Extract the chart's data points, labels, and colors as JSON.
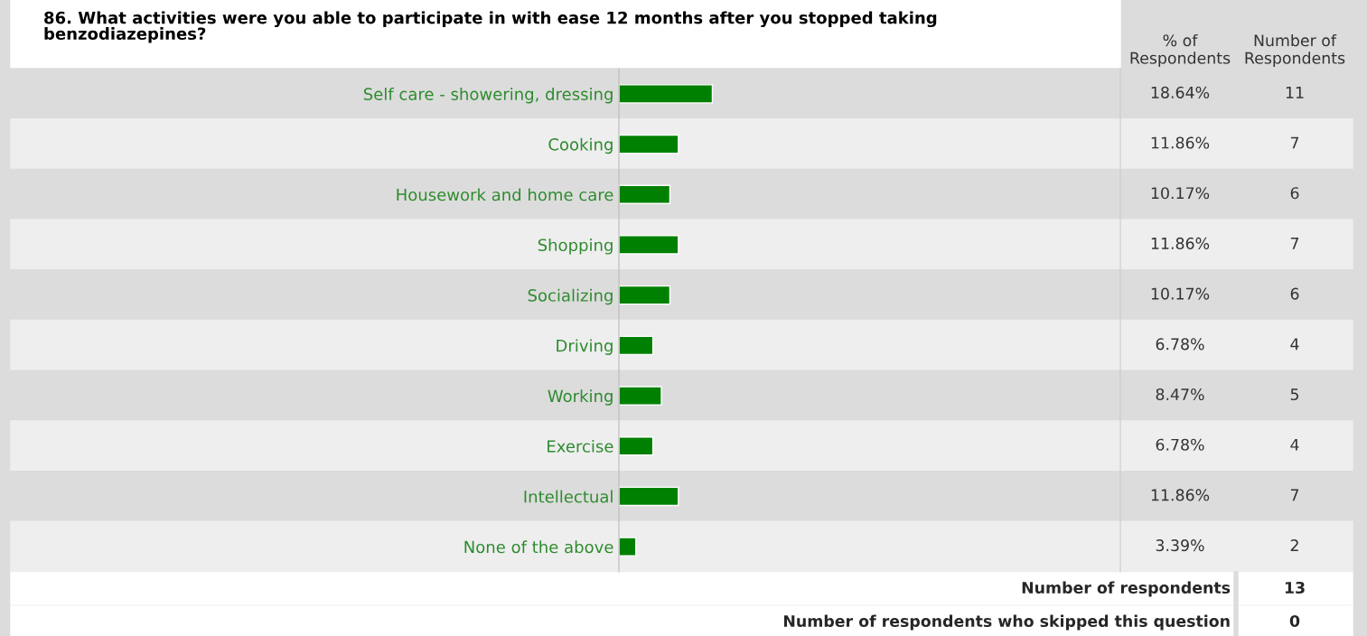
{
  "chart_data": [
    {
      "type": "bar",
      "orientation": "horizontal",
      "title": "86. What activities were you able to participate in with ease 12 months after you stopped taking\nbenzodiazepines?",
      "categories": [
        "Self care - showering, dressing",
        "Cooking",
        "Housework and home care",
        "Shopping",
        "Socializing",
        "Driving",
        "Working",
        "Exercise",
        "Intellectual",
        "None of the above"
      ],
      "series": [
        {
          "name": "% of\nRespondents",
          "color": "#008000",
          "values": [
            18.64,
            11.86,
            10.17,
            11.86,
            10.17,
            6.78,
            8.47,
            6.78,
            11.86,
            3.39
          ],
          "value_labels": [
            "18.64%",
            "11.86%",
            "10.17%",
            "11.86%",
            "10.17%",
            "6.78%",
            "8.47%",
            "6.78%",
            "11.86%",
            "3.39%"
          ]
        }
      ],
      "xlim": [
        0,
        100
      ],
      "tick_labels": "y",
      "grid": false,
      "legend": false,
      "annotations": [
        "Number of respondents",
        "13",
        "Number of respondents who skipped this question",
        "0"
      ]
    },
    {
      "type": "other",
      "title": "Number of\nRespondents",
      "values": [
        11,
        7,
        6,
        7,
        6,
        4,
        5,
        4,
        7,
        2
      ],
      "data_labels": true
    }
  ]
}
